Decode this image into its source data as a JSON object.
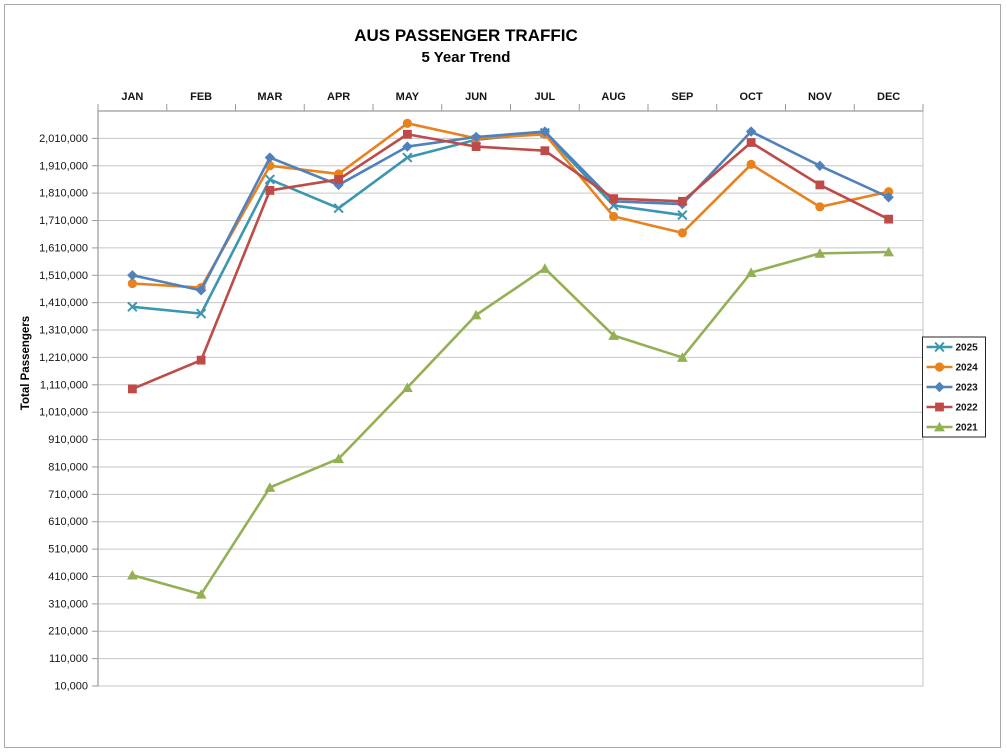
{
  "chart_data": {
    "type": "line",
    "title": "AUS PASSENGER TRAFFIC",
    "subtitle": "5 Year Trend",
    "xlabel": "",
    "ylabel": "Total Passengers",
    "categories": [
      "JAN",
      "FEB",
      "MAR",
      "APR",
      "MAY",
      "JUN",
      "JUL",
      "AUG",
      "SEP",
      "OCT",
      "NOV",
      "DEC"
    ],
    "y_axis": {
      "min": 10000,
      "max": 2110000,
      "major_unit": 100000,
      "ticks": [
        10000,
        110000,
        210000,
        310000,
        410000,
        510000,
        610000,
        710000,
        810000,
        910000,
        1010000,
        1110000,
        1210000,
        1310000,
        1410000,
        1510000,
        1610000,
        1710000,
        1810000,
        1910000,
        2010000
      ],
      "number_format": "comma-thousands"
    },
    "grid": true,
    "legend_position": "right",
    "series": [
      {
        "name": "2025",
        "color": "#3D96B0",
        "marker": "x",
        "values": [
          1395000,
          1370000,
          1860000,
          1755000,
          1940000,
          2005000,
          2030000,
          1765000,
          1730000,
          null,
          null,
          null
        ]
      },
      {
        "name": "2024",
        "color": "#E8821E",
        "marker": "circle",
        "values": [
          1480000,
          1465000,
          1910000,
          1880000,
          2065000,
          2010000,
          2025000,
          1725000,
          1665000,
          1915000,
          1760000,
          1815000
        ]
      },
      {
        "name": "2023",
        "color": "#4F81BD",
        "marker": "diamond",
        "values": [
          1510000,
          1455000,
          1940000,
          1840000,
          1980000,
          2015000,
          2035000,
          1780000,
          1770000,
          2035000,
          1910000,
          1795000
        ]
      },
      {
        "name": "2022",
        "color": "#BE4B48",
        "marker": "square",
        "values": [
          1095000,
          1200000,
          1820000,
          1860000,
          2025000,
          1980000,
          1965000,
          1790000,
          1780000,
          1995000,
          1840000,
          1715000
        ]
      },
      {
        "name": "2021",
        "color": "#94B054",
        "marker": "triangle",
        "values": [
          415000,
          345000,
          735000,
          840000,
          1100000,
          1365000,
          1535000,
          1290000,
          1210000,
          1520000,
          1590000,
          1595000
        ]
      }
    ],
    "colors": {
      "gridline": "#C6C6C6",
      "axis_line": "#9A9A9A",
      "chart_border": "#A9A9A9",
      "legend_border": "#262626",
      "background": "#FFFFFF"
    }
  }
}
